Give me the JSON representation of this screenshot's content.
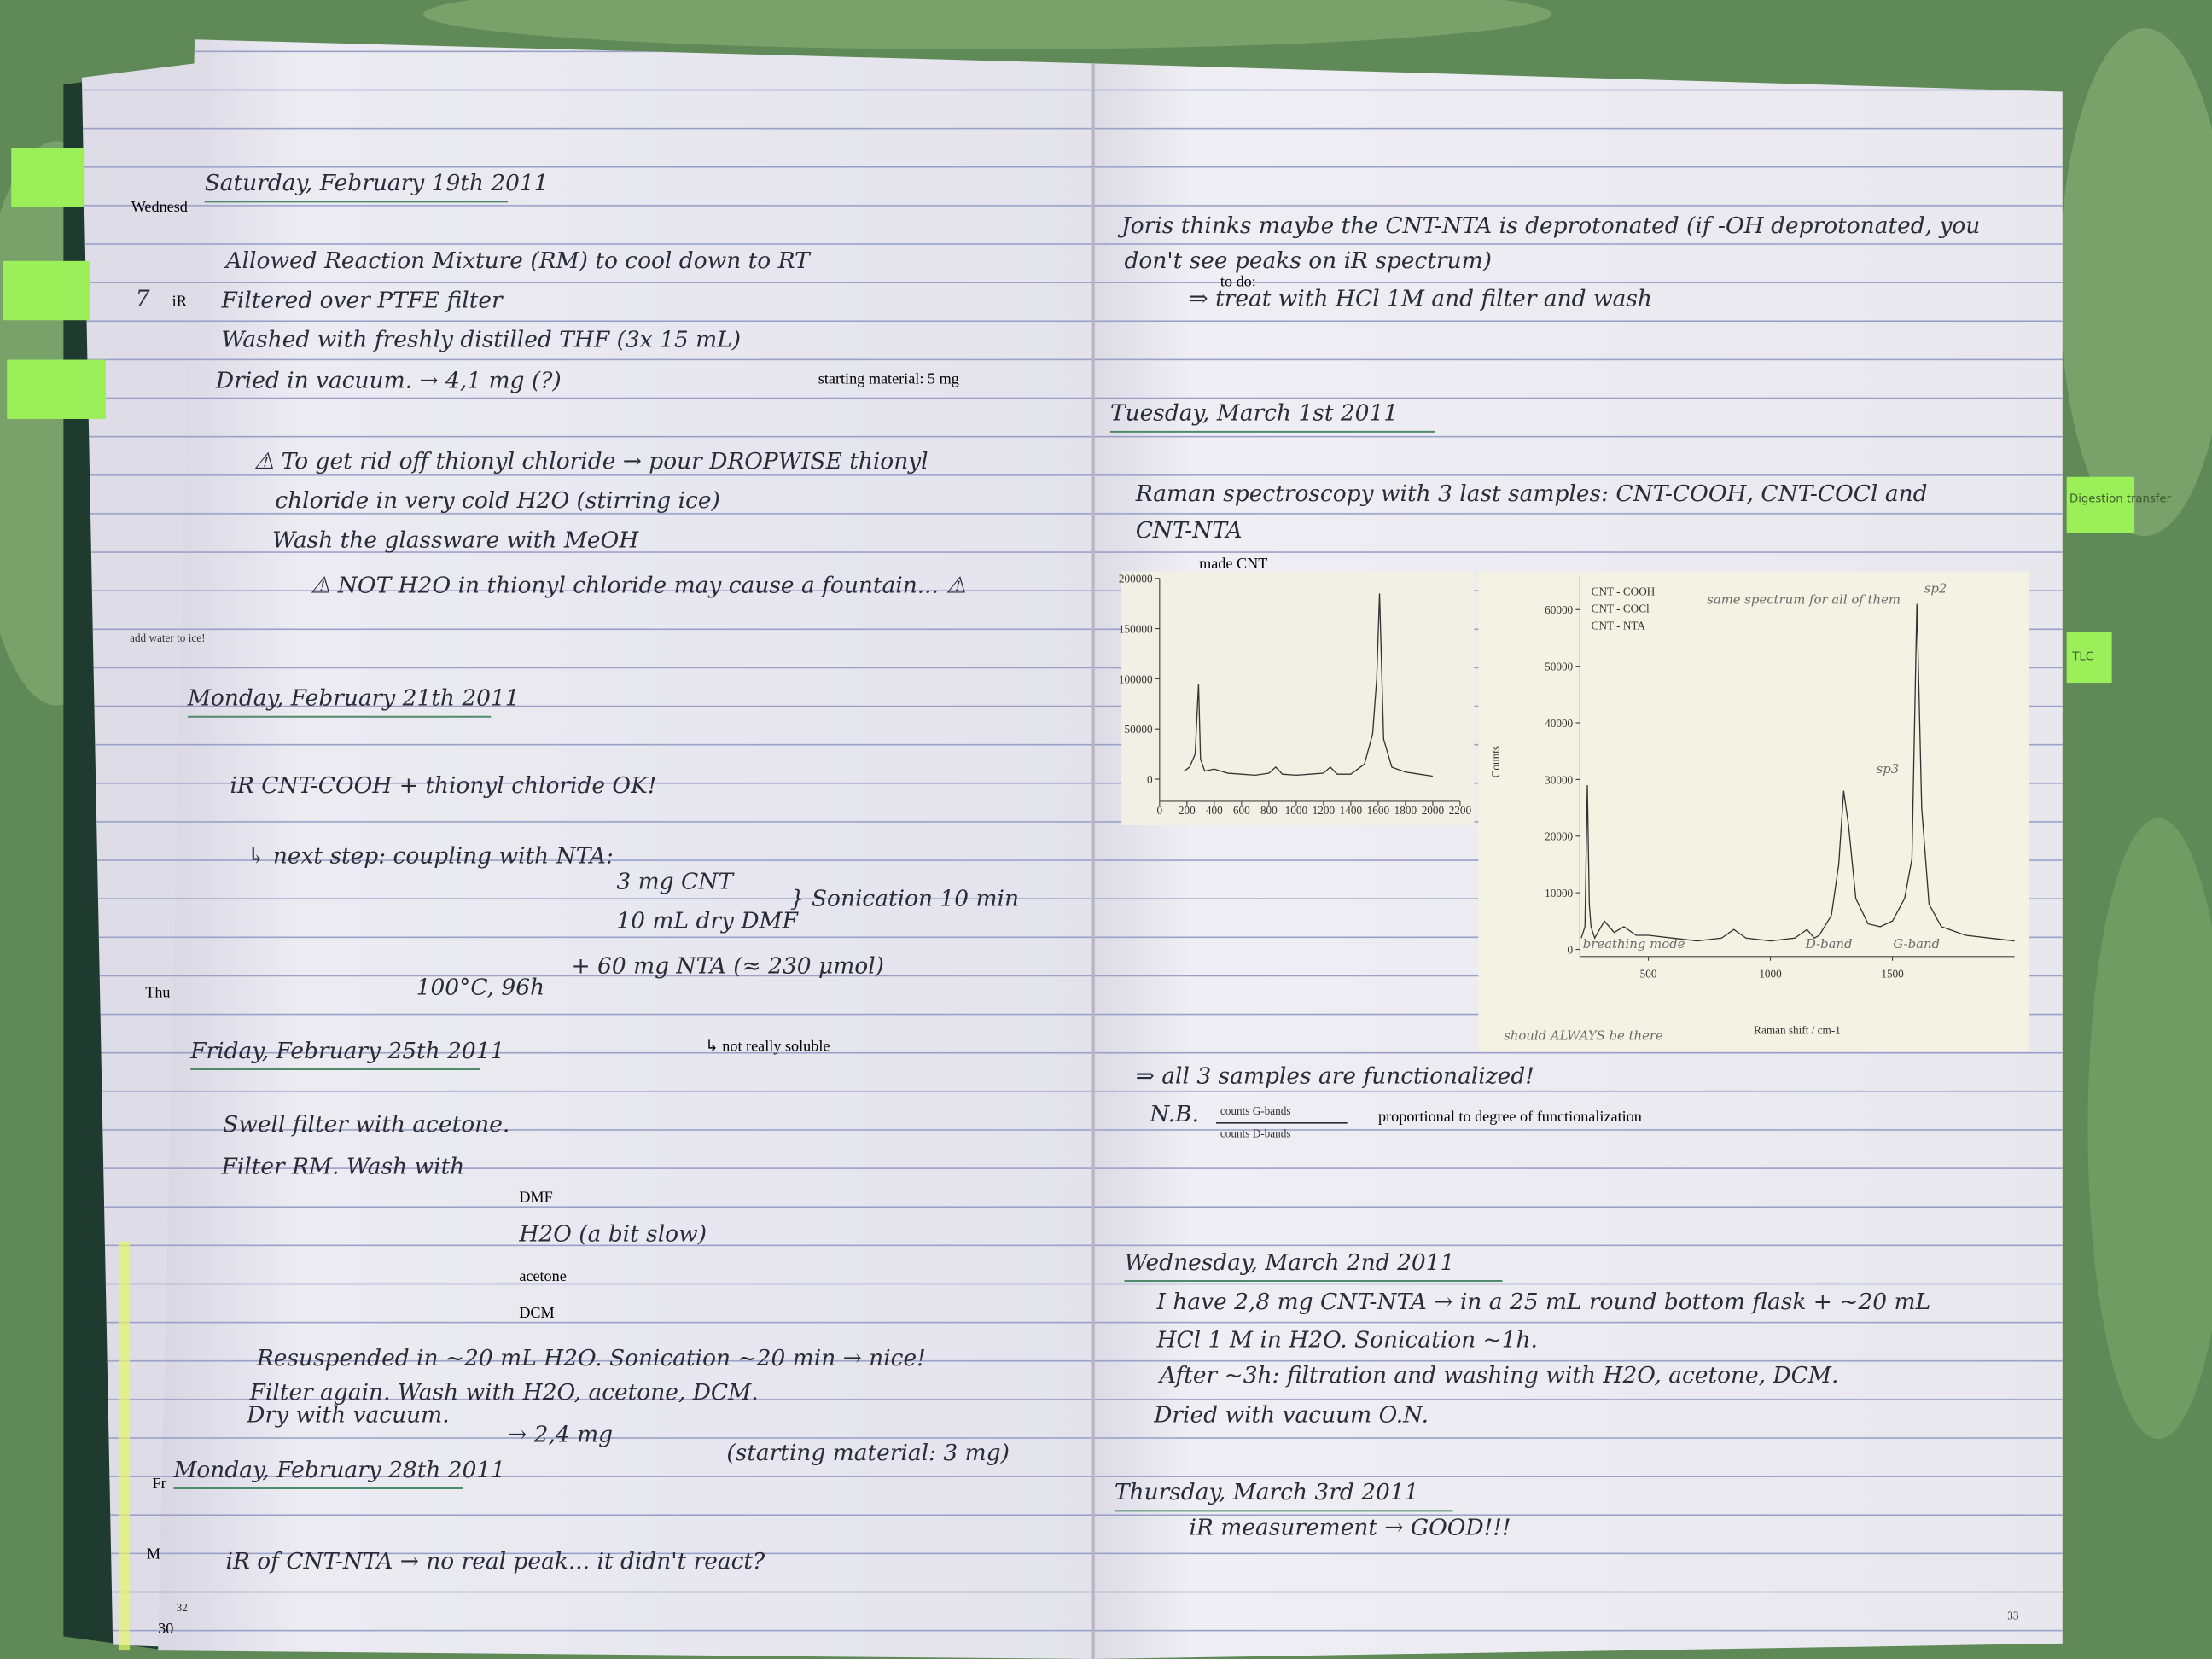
{
  "left_page": {
    "margin_notes": [
      "Wednesd",
      "7",
      "iR",
      "add water to ice!",
      "Thu",
      "Fr",
      "M",
      "30"
    ],
    "entries": [
      {
        "date": "Saturday, February 19th 2011",
        "lines": [
          "Allowed Reaction Mixture (RM) to cool down to RT",
          "Filtered over PTFE filter",
          "Washed with freshly distilled THF (3x 15 mL)",
          "Dried in vacuum. → 4,1 mg (?)",
          "starting material: 5 mg",
          "⚠ To get rid off thionyl chloride → pour DROPWISE thionyl",
          "chloride in very cold H2O (stirring ice)",
          "Wash the glassware with MeOH",
          "⚠ NOT H2O in thionyl chloride may cause a fountain... ⚠"
        ]
      },
      {
        "date": "Monday, February 21th 2011",
        "lines": [
          "iR CNT-COOH + thionyl chloride OK!",
          "↳ next step: coupling with NTA:",
          "3 mg CNT",
          "10 mL dry DMF",
          "+ 60 mg NTA (≈ 230 μmol)",
          "} Sonication 10 min",
          "100°C, 96h",
          "↳ not really soluble"
        ]
      },
      {
        "date": "Friday, February 25th 2011",
        "lines": [
          "Swell filter with acetone.",
          "Filter RM. Wash with",
          "DMF",
          "H2O (a bit slow)",
          "acetone",
          "DCM",
          "Resuspended in ~20 mL H2O. Sonication ~20 min → nice!",
          "Filter again. Wash with H2O, acetone, DCM.",
          "Dry with vacuum.",
          "→ 2,4 mg",
          "(starting material: 3 mg)"
        ]
      },
      {
        "date": "Monday, February 28th 2011",
        "lines": [
          "iR of CNT-NTA → no real peak... it didn't react?"
        ]
      }
    ],
    "page_number": "32"
  },
  "right_page": {
    "intro_lines": [
      "Joris thinks maybe the CNT-NTA is deprotonated (if -OH deprotonated, you",
      "don't see peaks on iR spectrum)",
      "to do:",
      "⇒ treat with HCl 1M and filter and wash"
    ],
    "entries": [
      {
        "date": "Tuesday, March 1st 2011",
        "lines": [
          "Raman spectroscopy with 3 last samples: CNT-COOH, CNT-COCl and",
          "CNT-NTA",
          "made CNT",
          "⇒ all 3 samples are functionalized!",
          "N.B.",
          "counts G-bands",
          "counts D-bands",
          "proportional to degree of functionalization"
        ]
      },
      {
        "date": "Wednesday, March 2nd 2011",
        "lines": [
          "I have 2,8 mg CNT-NTA → in a 25 mL round bottom flask + ~20 mL",
          "HCl 1 M in H2O. Sonication ~1h.",
          "After ~3h: filtration and washing with H2O, acetone, DCM.",
          "Dried with vacuum O.N."
        ]
      },
      {
        "date": "Thursday, March 3rd 2011",
        "lines": [
          "iR measurement → GOOD!!!"
        ]
      }
    ],
    "page_number": "33"
  },
  "tabs": [
    "Digestion transfer",
    "TLC"
  ],
  "spectra": [
    {
      "type": "line",
      "x": [
        180,
        220,
        260,
        285,
        300,
        330,
        400,
        500,
        600,
        700,
        800,
        850,
        900,
        1000,
        1100,
        1200,
        1250,
        1300,
        1400,
        1500,
        1560,
        1590,
        1610,
        1640,
        1700,
        1800,
        1900,
        2000
      ],
      "values": [
        8000,
        12000,
        25000,
        95000,
        20000,
        8000,
        10000,
        6000,
        5000,
        4000,
        6000,
        12000,
        5000,
        4000,
        5000,
        6000,
        12000,
        5000,
        5000,
        15000,
        45000,
        100000,
        185000,
        40000,
        12000,
        7000,
        5000,
        3000
      ],
      "xlim": [
        0,
        2200
      ],
      "ylim": [
        -15000,
        200000
      ],
      "xticks": [
        0,
        200,
        400,
        600,
        800,
        1000,
        1200,
        1400,
        1600,
        1800,
        2000,
        2200
      ],
      "yticks": [
        0,
        50000,
        100000,
        150000,
        200000
      ]
    },
    {
      "type": "line",
      "x": [
        225,
        240,
        250,
        258,
        265,
        280,
        320,
        360,
        400,
        450,
        500,
        600,
        700,
        800,
        850,
        900,
        1000,
        1100,
        1150,
        1180,
        1200,
        1250,
        1280,
        1300,
        1320,
        1350,
        1400,
        1450,
        1500,
        1550,
        1580,
        1600,
        1620,
        1650,
        1700,
        1800,
        1900,
        2000
      ],
      "values": [
        2000,
        4000,
        29000,
        8000,
        4000,
        2000,
        5000,
        3000,
        4000,
        2500,
        2500,
        2000,
        1500,
        2000,
        3500,
        2000,
        1500,
        2000,
        3500,
        2000,
        2500,
        6000,
        15000,
        28000,
        22000,
        9000,
        4500,
        4000,
        5000,
        9000,
        16000,
        61000,
        25000,
        8000,
        4000,
        2500,
        2000,
        1500
      ],
      "xlim": [
        220,
        2000
      ],
      "ylim": [
        0,
        66000
      ],
      "xticks": [
        500,
        1000,
        1500
      ],
      "yticks": [
        0,
        10000,
        20000,
        30000,
        40000,
        50000,
        60000
      ],
      "x_label": "Raman shift / cm-1",
      "y_label": "Counts",
      "legend": [
        "CNT - COOH",
        "CNT - COCl",
        "CNT - NTA"
      ],
      "annotations": [
        "same spectrum for all of them",
        "sp3",
        "sp2",
        "breathing mode",
        "D-band",
        "G-band",
        "should ALWAYS be there"
      ]
    }
  ]
}
